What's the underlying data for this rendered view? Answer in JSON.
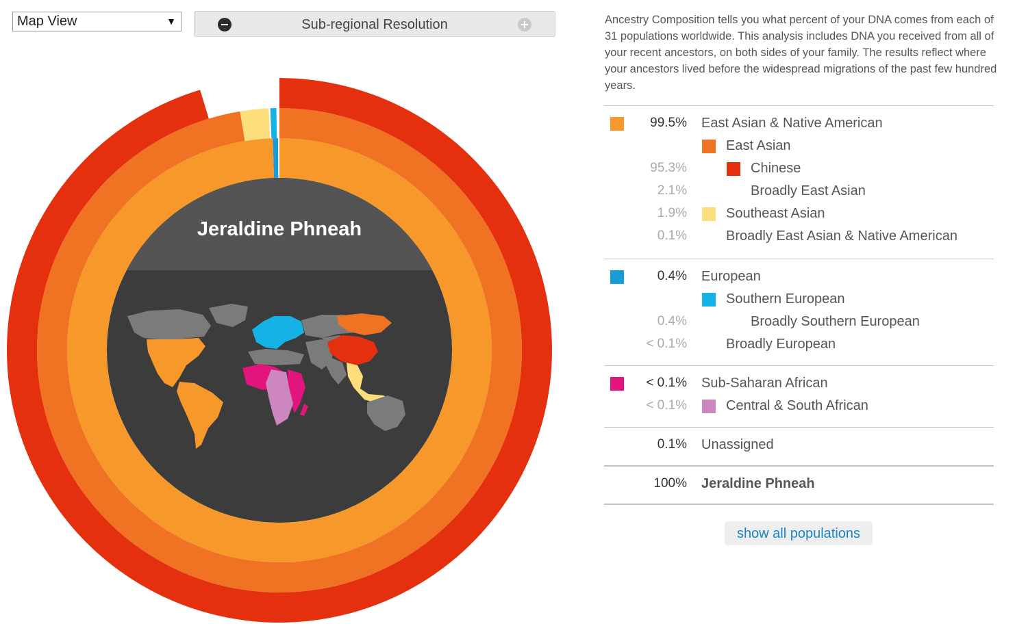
{
  "controls": {
    "view_select": "Map View",
    "resolution_label": "Sub-regional Resolution"
  },
  "chart_center": {
    "name": "Jeraldine Phneah"
  },
  "description": "Ancestry Composition tells you what percent of your DNA comes from each of 31 populations worldwide. This analysis includes DNA you received from all of your recent ancestors, on both sides of your family. The results reflect where your ancestors lived before the widespread migrations of the past few hundred years.",
  "colors": {
    "east_asian_native_american": "#f7982a",
    "east_asian": "#f07323",
    "chinese": "#e5300f",
    "southeast_asian": "#fcde7c",
    "european": "#1a9ad7",
    "southern_european": "#14b2e6",
    "sub_saharan_african": "#e1157b",
    "central_south_african": "#cc86c0",
    "map_gray": "#7b7b7b",
    "center_dark": "#3c3c3c",
    "center_top": "#545454"
  },
  "table": {
    "sections": [
      {
        "rows": [
          {
            "level": 0,
            "pct": "99.5%",
            "name": "East Asian & Native American",
            "color": "#f7982a",
            "muted": false
          },
          {
            "level": 1,
            "pct": "",
            "name": "East Asian",
            "color": "#f07323",
            "muted": false
          },
          {
            "level": 2,
            "pct": "95.3%",
            "name": "Chinese",
            "color": "#e5300f",
            "muted": true
          },
          {
            "level": 2,
            "pct": "2.1%",
            "name": "Broadly East Asian",
            "color": "",
            "muted": true
          },
          {
            "level": 1,
            "pct": "1.9%",
            "name": "Southeast Asian",
            "color": "#fcde7c",
            "muted": true
          },
          {
            "level": 1,
            "pct": "0.1%",
            "name": "Broadly East Asian & Native American",
            "color": "",
            "muted": true
          }
        ]
      },
      {
        "rows": [
          {
            "level": 0,
            "pct": "0.4%",
            "name": "European",
            "color": "#1a9ad7",
            "muted": false
          },
          {
            "level": 1,
            "pct": "",
            "name": "Southern European",
            "color": "#14b2e6",
            "muted": false
          },
          {
            "level": 2,
            "pct": "0.4%",
            "name": "Broadly Southern European",
            "color": "",
            "muted": true
          },
          {
            "level": 1,
            "pct": "< 0.1%",
            "name": "Broadly European",
            "color": "",
            "muted": true
          }
        ]
      },
      {
        "rows": [
          {
            "level": 0,
            "pct": "< 0.1%",
            "name": "Sub-Saharan African",
            "color": "#e1157b",
            "muted": false
          },
          {
            "level": 1,
            "pct": "< 0.1%",
            "name": "Central & South African",
            "color": "#cc86c0",
            "muted": true
          }
        ]
      },
      {
        "rows": [
          {
            "level": 0,
            "pct": "0.1%",
            "name": "Unassigned",
            "color": "",
            "muted": false
          }
        ]
      },
      {
        "rows": [
          {
            "level": 0,
            "pct": "100%",
            "name": "Jeraldine Phneah",
            "color": "",
            "muted": false,
            "bold": true
          }
        ]
      }
    ]
  },
  "show_all_label": "show all populations",
  "chart_data": {
    "type": "pie",
    "rings": [
      {
        "ring": "inner",
        "segments": [
          {
            "name": "East Asian & Native American",
            "value": 99.5
          },
          {
            "name": "European",
            "value": 0.4
          },
          {
            "name": "Unassigned",
            "value": 0.1
          }
        ]
      },
      {
        "ring": "middle",
        "segments": [
          {
            "name": "East Asian",
            "value": 97.4
          },
          {
            "name": "Southeast Asian",
            "value": 1.9
          },
          {
            "name": "Broadly East Asian & Native American",
            "value": 0.1
          },
          {
            "name": "Southern European",
            "value": 0.4
          }
        ]
      },
      {
        "ring": "outer",
        "segments": [
          {
            "name": "Chinese",
            "value": 95.3
          },
          {
            "name": "Broadly East Asian",
            "value": 2.1
          }
        ]
      }
    ]
  }
}
